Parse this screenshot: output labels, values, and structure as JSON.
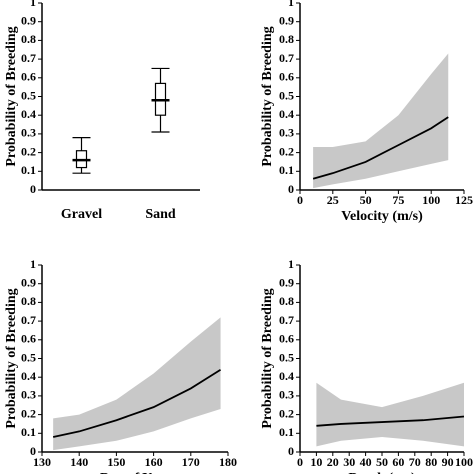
{
  "chart_data": [
    {
      "type": "errorbar",
      "ylabel": "Probability of Breeding",
      "categories": [
        "Gravel",
        "Sand"
      ],
      "mean": [
        0.16,
        0.48
      ],
      "ci_low": [
        0.09,
        0.31
      ],
      "ci_high": [
        0.28,
        0.65
      ],
      "box_low": [
        0.12,
        0.4
      ],
      "box_high": [
        0.21,
        0.57
      ],
      "ylim": [
        0,
        1
      ],
      "yticks": [
        0.0,
        0.1,
        0.2,
        0.3,
        0.4,
        0.5,
        0.6,
        0.7,
        0.8,
        0.9,
        1.0
      ]
    },
    {
      "type": "line",
      "ylabel": "Probability of Breeding",
      "xlabel": "Velocity (m/s)",
      "x": [
        10,
        25,
        50,
        75,
        100,
        113
      ],
      "values": [
        0.06,
        0.09,
        0.15,
        0.24,
        0.33,
        0.39
      ],
      "lower": [
        0.01,
        0.03,
        0.06,
        0.1,
        0.14,
        0.16
      ],
      "upper": [
        0.23,
        0.23,
        0.26,
        0.4,
        0.62,
        0.73
      ],
      "xlim": [
        0,
        125
      ],
      "xticks": [
        0,
        25,
        50,
        75,
        100,
        125
      ],
      "ylim": [
        0,
        1
      ],
      "yticks": [
        0.0,
        0.1,
        0.2,
        0.3,
        0.4,
        0.5,
        0.6,
        0.7,
        0.8,
        0.9,
        1.0
      ]
    },
    {
      "type": "line",
      "ylabel": "Probability of Breeding",
      "xlabel": "Day of Year",
      "x": [
        133,
        140,
        150,
        160,
        170,
        178
      ],
      "values": [
        0.08,
        0.11,
        0.17,
        0.24,
        0.34,
        0.44
      ],
      "lower": [
        0.01,
        0.03,
        0.06,
        0.11,
        0.18,
        0.23
      ],
      "upper": [
        0.18,
        0.2,
        0.28,
        0.42,
        0.59,
        0.72
      ],
      "xlim": [
        130,
        180
      ],
      "xticks": [
        130,
        140,
        150,
        160,
        170,
        180
      ],
      "ylim": [
        0,
        1
      ],
      "yticks": [
        0.0,
        0.1,
        0.2,
        0.3,
        0.4,
        0.5,
        0.6,
        0.7,
        0.8,
        0.9,
        1.0
      ]
    },
    {
      "type": "line",
      "ylabel": "Probability of Breeding",
      "xlabel": "Depth (cm)",
      "x": [
        10,
        25,
        50,
        75,
        100
      ],
      "values": [
        0.14,
        0.15,
        0.16,
        0.17,
        0.19
      ],
      "lower": [
        0.03,
        0.06,
        0.08,
        0.06,
        0.03
      ],
      "upper": [
        0.37,
        0.28,
        0.24,
        0.3,
        0.37
      ],
      "xlim": [
        0,
        100
      ],
      "xticks": [
        0,
        10,
        20,
        30,
        40,
        50,
        60,
        70,
        80,
        90,
        100
      ],
      "ylim": [
        0,
        1
      ],
      "yticks": [
        0.0,
        0.1,
        0.2,
        0.3,
        0.4,
        0.5,
        0.6,
        0.7,
        0.8,
        0.9,
        1.0
      ]
    }
  ]
}
